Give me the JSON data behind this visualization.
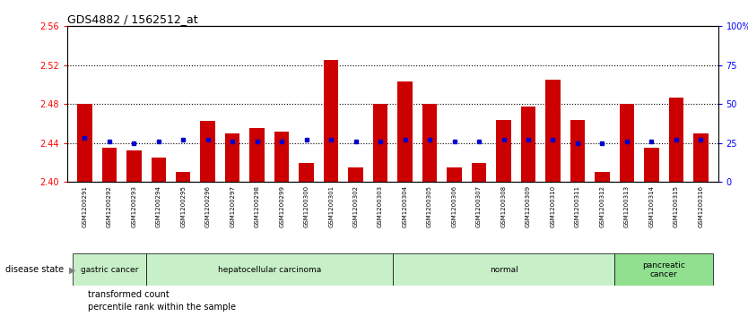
{
  "title": "GDS4882 / 1562512_at",
  "samples": [
    "GSM1200291",
    "GSM1200292",
    "GSM1200293",
    "GSM1200294",
    "GSM1200295",
    "GSM1200296",
    "GSM1200297",
    "GSM1200298",
    "GSM1200299",
    "GSM1200300",
    "GSM1200301",
    "GSM1200302",
    "GSM1200303",
    "GSM1200304",
    "GSM1200305",
    "GSM1200306",
    "GSM1200307",
    "GSM1200308",
    "GSM1200309",
    "GSM1200310",
    "GSM1200311",
    "GSM1200312",
    "GSM1200313",
    "GSM1200314",
    "GSM1200315",
    "GSM1200316"
  ],
  "transformed_count": [
    2.48,
    2.435,
    2.432,
    2.425,
    2.41,
    2.463,
    2.45,
    2.455,
    2.452,
    2.42,
    2.525,
    2.415,
    2.48,
    2.503,
    2.48,
    2.415,
    2.42,
    2.464,
    2.477,
    2.505,
    2.464,
    2.41,
    2.48,
    2.435,
    2.487,
    2.45
  ],
  "percentile_rank": [
    28,
    26,
    25,
    26,
    27,
    27,
    26,
    26,
    26,
    27,
    27,
    26,
    26,
    27,
    27,
    26,
    26,
    27,
    27,
    27,
    25,
    25,
    26,
    26,
    27,
    27
  ],
  "disease_groups": [
    {
      "label": "gastric cancer",
      "start": 0,
      "end": 3,
      "color": "#c8f0c8"
    },
    {
      "label": "hepatocellular carcinoma",
      "start": 3,
      "end": 13,
      "color": "#c8f0c8"
    },
    {
      "label": "normal",
      "start": 13,
      "end": 22,
      "color": "#c8f0c8"
    },
    {
      "label": "pancreatic\ncancer",
      "start": 22,
      "end": 26,
      "color": "#90e090"
    }
  ],
  "ylim_left": [
    2.4,
    2.56
  ],
  "ylim_right": [
    0,
    100
  ],
  "yticks_left": [
    2.4,
    2.44,
    2.48,
    2.52,
    2.56
  ],
  "yticks_right": [
    0,
    25,
    50,
    75,
    100
  ],
  "ytick_labels_right": [
    "0",
    "25",
    "50",
    "75",
    "100%"
  ],
  "hlines": [
    2.44,
    2.48,
    2.52
  ],
  "bar_color": "#cc0000",
  "dot_color": "#0000cc",
  "plot_bg_color": "#ffffff",
  "tick_label_area_color": "#d4d4d4",
  "disease_bg_color": "#c8f0c8",
  "disease_bg_color2": "#80d880",
  "disease_label": "disease state",
  "legend_entries": [
    "transformed count",
    "percentile rank within the sample"
  ]
}
